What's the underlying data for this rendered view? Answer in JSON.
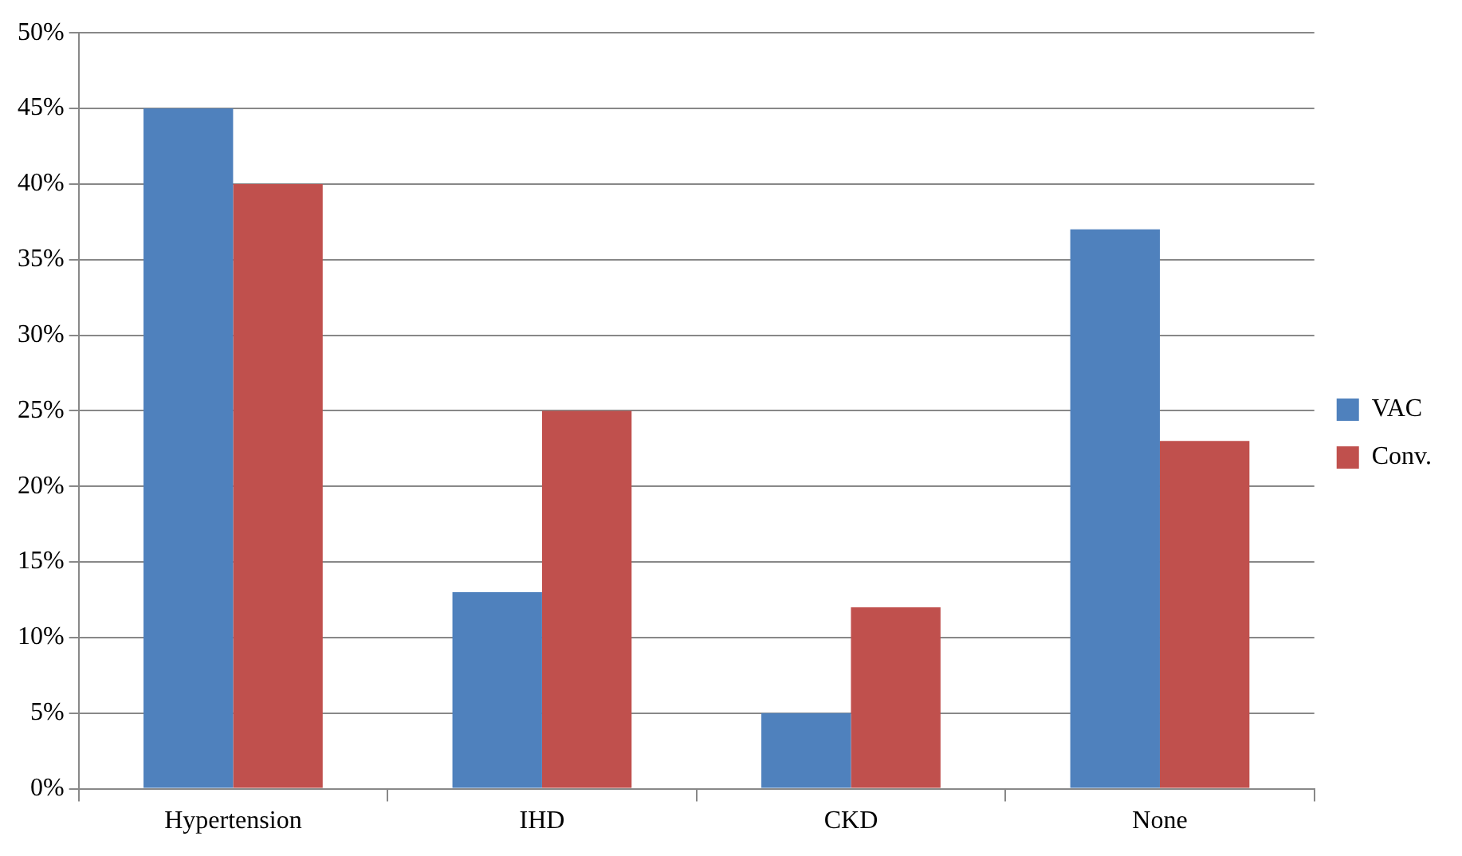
{
  "chart_data": {
    "type": "bar",
    "categories": [
      "Hypertension",
      "IHD",
      "CKD",
      "None"
    ],
    "series": [
      {
        "name": "VAC",
        "color": "#4f81bd",
        "values": [
          45,
          13,
          5,
          37
        ]
      },
      {
        "name": "Conv.",
        "color": "#c0504d",
        "values": [
          40,
          25,
          12,
          23
        ]
      }
    ],
    "ylim": [
      0,
      50
    ],
    "yticks": [
      {
        "value": 0,
        "label": "0%"
      },
      {
        "value": 5,
        "label": "5%"
      },
      {
        "value": 10,
        "label": "10%"
      },
      {
        "value": 15,
        "label": "15%"
      },
      {
        "value": 20,
        "label": "20%"
      },
      {
        "value": 25,
        "label": "25%"
      },
      {
        "value": 30,
        "label": "30%"
      },
      {
        "value": 35,
        "label": "35%"
      },
      {
        "value": 40,
        "label": "40%"
      },
      {
        "value": 45,
        "label": "45%"
      },
      {
        "value": 50,
        "label": "50%"
      }
    ],
    "grid": "y",
    "legend": "right"
  }
}
